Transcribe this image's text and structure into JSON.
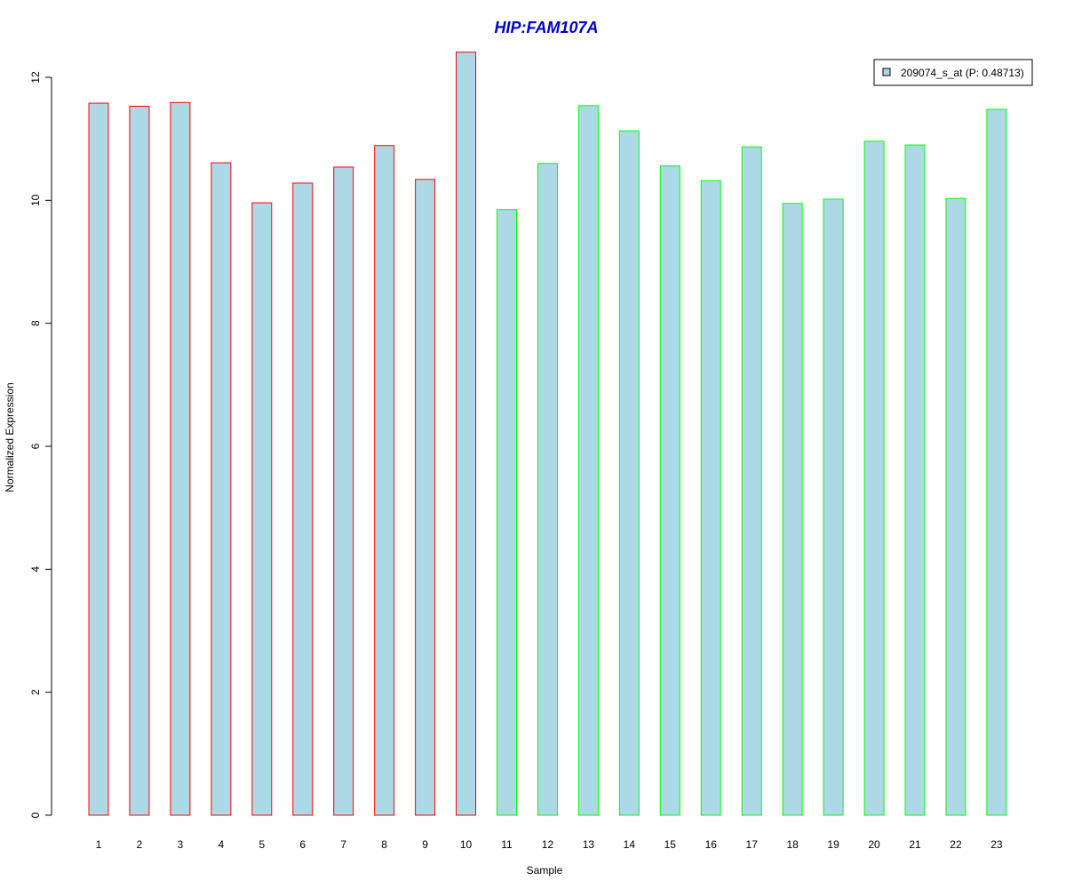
{
  "chart_data": {
    "type": "bar",
    "title": "HIP:FAM107A",
    "xlabel": "Sample",
    "ylabel": "Normalized Expression",
    "categories": [
      "1",
      "2",
      "3",
      "4",
      "5",
      "6",
      "7",
      "8",
      "9",
      "10",
      "11",
      "12",
      "13",
      "14",
      "15",
      "16",
      "17",
      "18",
      "19",
      "20",
      "21",
      "22",
      "23"
    ],
    "series": [
      {
        "name": "209074_s_at (P: 0.48713)",
        "values": [
          11.58,
          11.53,
          11.59,
          10.61,
          9.96,
          10.28,
          10.54,
          10.89,
          10.34,
          12.41,
          9.85,
          10.6,
          11.54,
          11.13,
          10.56,
          10.32,
          10.87,
          9.95,
          10.02,
          10.96,
          10.9,
          10.03,
          11.48
        ]
      }
    ],
    "group_split": 10,
    "ylim": [
      0,
      12
    ],
    "yticks": [
      "0",
      "2",
      "4",
      "6",
      "8",
      "10",
      "12"
    ],
    "legend_position": "top-right",
    "grid": false,
    "colors": {
      "title": "#0000cc",
      "bar_fill": "#add8e6",
      "group1_border": "#ff0000",
      "group2_border": "#00ff00",
      "axis": "#000000"
    }
  }
}
